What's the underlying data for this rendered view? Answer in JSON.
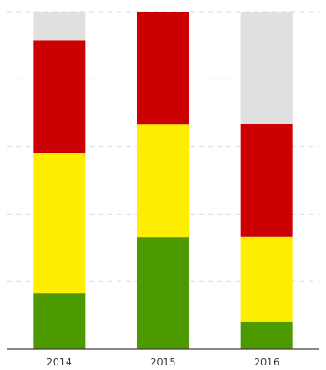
{
  "chart_data": {
    "type": "bar",
    "stacked": true,
    "categories": [
      "2014",
      "2015",
      "2016"
    ],
    "series": [
      {
        "key": "green",
        "color": "#4c9a00",
        "values": [
          0.165,
          0.333,
          0.082
        ]
      },
      {
        "key": "yellow",
        "color": "#ffee00",
        "values": [
          0.415,
          0.333,
          0.252
        ]
      },
      {
        "key": "red",
        "color": "#cc0000",
        "values": [
          0.335,
          0.334,
          0.333
        ]
      },
      {
        "key": "gray",
        "color": "#e0e0e0",
        "values": [
          0.085,
          0.0,
          0.333
        ]
      }
    ],
    "ylim": [
      0,
      1
    ],
    "grid": true,
    "title": "",
    "xlabel": "",
    "ylabel": ""
  }
}
